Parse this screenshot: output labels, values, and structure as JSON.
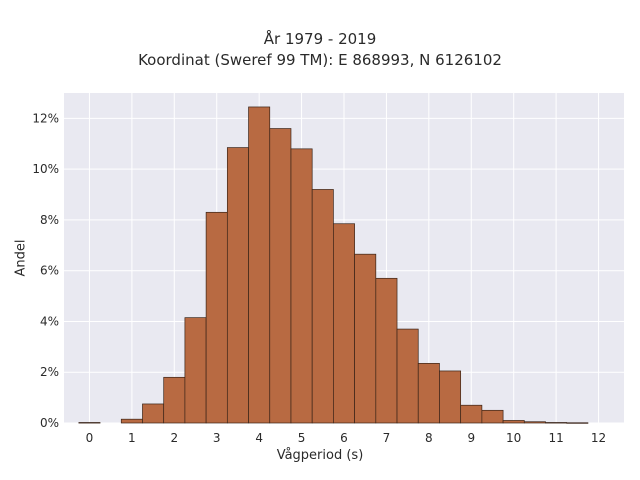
{
  "chart_data": {
    "type": "bar",
    "title": "År 1979 - 2019",
    "subtitle": "Koordinat (Sweref 99 TM): E 868993, N 6126102",
    "xlabel": "Vågperiod (s)",
    "ylabel": "Andel",
    "xlim": [
      -0.6,
      12.6
    ],
    "ylim": [
      0,
      13
    ],
    "x_ticks": [
      0,
      1,
      2,
      3,
      4,
      5,
      6,
      7,
      8,
      9,
      10,
      11,
      12
    ],
    "y_ticks": [
      "0%",
      "2%",
      "4%",
      "6%",
      "8%",
      "10%",
      "12%"
    ],
    "y_tick_values": [
      0,
      2,
      4,
      6,
      8,
      10,
      12
    ],
    "bin_width": 0.5,
    "bins": [
      {
        "x": 0.0,
        "y": 0.02
      },
      {
        "x": 1.0,
        "y": 0.15
      },
      {
        "x": 1.5,
        "y": 0.75
      },
      {
        "x": 2.0,
        "y": 1.8
      },
      {
        "x": 2.5,
        "y": 4.15
      },
      {
        "x": 3.0,
        "y": 8.3
      },
      {
        "x": 3.5,
        "y": 10.85
      },
      {
        "x": 4.0,
        "y": 12.45
      },
      {
        "x": 4.5,
        "y": 11.6
      },
      {
        "x": 5.0,
        "y": 10.8
      },
      {
        "x": 5.5,
        "y": 9.2
      },
      {
        "x": 6.0,
        "y": 7.85
      },
      {
        "x": 6.5,
        "y": 6.65
      },
      {
        "x": 7.0,
        "y": 5.7
      },
      {
        "x": 7.5,
        "y": 3.7
      },
      {
        "x": 8.0,
        "y": 2.35
      },
      {
        "x": 8.5,
        "y": 2.05
      },
      {
        "x": 9.0,
        "y": 0.7
      },
      {
        "x": 9.5,
        "y": 0.5
      },
      {
        "x": 10.0,
        "y": 0.1
      },
      {
        "x": 10.5,
        "y": 0.05
      },
      {
        "x": 11.0,
        "y": 0.02
      },
      {
        "x": 11.5,
        "y": 0.01
      }
    ],
    "grid": true,
    "colors": {
      "bar": "#b86a42",
      "bar_edge": "#3a2418",
      "plot_background": "#e9e9f1",
      "grid": "#ffffff"
    }
  }
}
